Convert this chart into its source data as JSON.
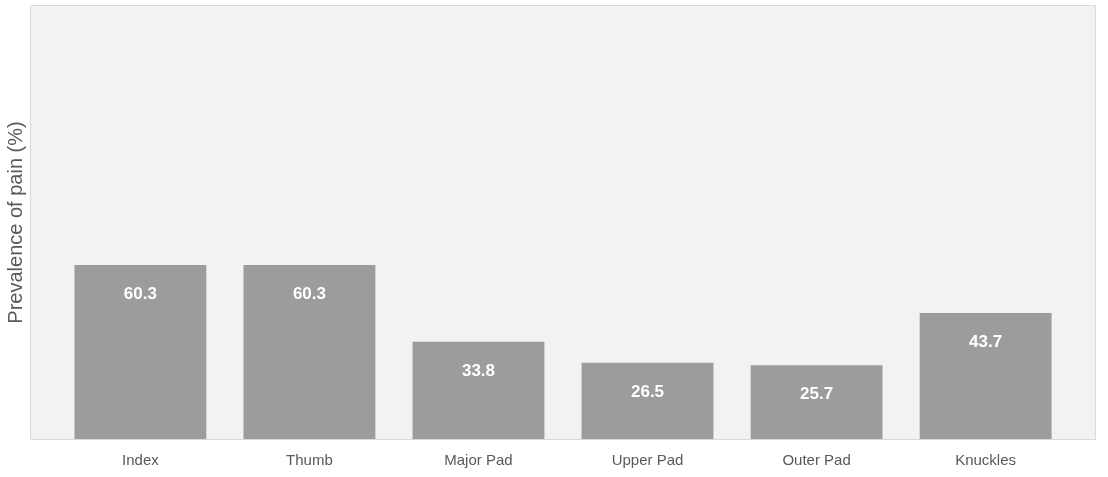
{
  "chart_data": {
    "type": "bar",
    "ylabel": "Prevalence of pain (%)",
    "categories": [
      "Index",
      "Thumb",
      "Major Pad",
      "Upper Pad",
      "Outer Pad",
      "Knuckles"
    ],
    "values": [
      60.3,
      60.3,
      33.8,
      26.5,
      25.7,
      43.7
    ],
    "color": "#9c9c9c",
    "ylim": [
      0,
      150
    ],
    "data_labels": true,
    "tick_labels": "x",
    "grid": false
  }
}
